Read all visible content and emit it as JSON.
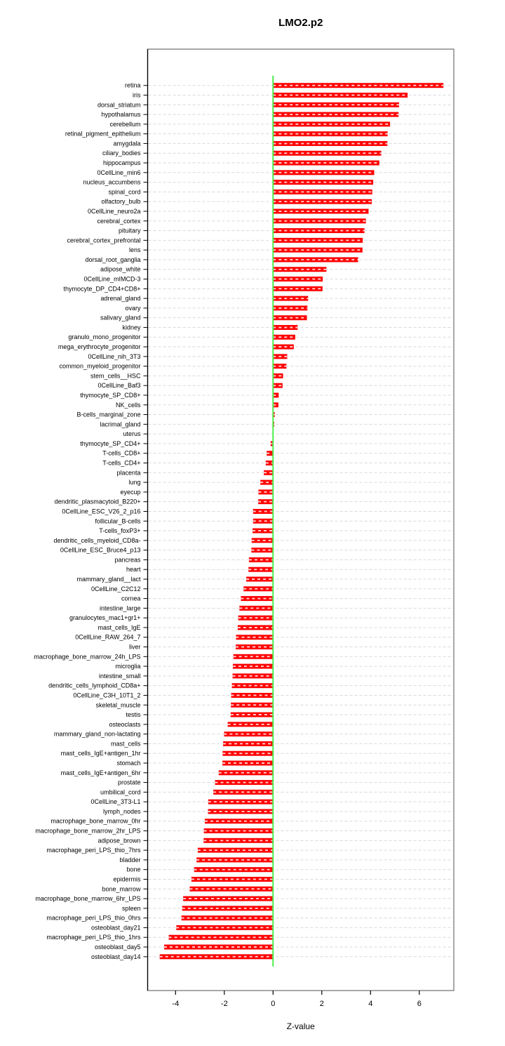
{
  "title": "LMO2.p2",
  "chart_data": {
    "type": "bar",
    "orientation": "horizontal",
    "title": "LMO2.p2",
    "xlabel": "Z-value",
    "x_ticks": [
      -4,
      -2,
      0,
      2,
      4,
      6
    ],
    "x_tick_labels": [
      "-4",
      "-2",
      "0",
      "2",
      "4",
      "6"
    ],
    "xlim": [
      -5.15,
      7.42
    ],
    "bar_color": "#FF0000",
    "zero_line_color": "#4CEE4C",
    "grid_color": "#D9D9D9",
    "box_color": "#8C8C8C",
    "grid": true,
    "legend": false,
    "categories": [
      "retina",
      "iris",
      "dorsal_striatum",
      "hypothalamus",
      "cerebellum",
      "retinal_pigment_epithelium",
      "amygdala",
      "ciliary_bodies",
      "hippocampus",
      "0CellLine_min6",
      "nucleus_accumbens",
      "spinal_cord",
      "olfactory_bulb",
      "0CellLine_neuro2a",
      "cerebral_cortex",
      "pituitary",
      "cerebral_cortex_prefrontal",
      "lens",
      "dorsal_root_ganglia",
      "adipose_white",
      "0CellLine_mIMCD-3",
      "thymocyte_DP_CD4+CD8+",
      "adrenal_gland",
      "ovary",
      "salivary_gland",
      "kidney",
      "granulo_mono_progenitor",
      "mega_erythrocyte_progenitor",
      "0CellLine_nih_3T3",
      "common_myeloid_progenitor",
      "stem_cells__HSC",
      "0CellLine_Baf3",
      "thymocyte_SP_CD8+",
      "NK_cells",
      "B-cells_marginal_zone",
      "lacrimal_gland",
      "uterus",
      "thymocyte_SP_CD4+",
      "T-cells_CD8+",
      "T-cells_CD4+",
      "placenta",
      "lung",
      "eyecup",
      "dendritic_plasmacytoid_B220+",
      "0CellLine_ESC_V26_2_p16",
      "follicular_B-cells",
      "T-cells_foxP3+",
      "dendritic_cells_myeloid_CD8a-",
      "0CellLine_ESC_Bruce4_p13",
      "pancreas",
      "heart",
      "mammary_gland__lact",
      "0CellLine_C2C12",
      "cornea",
      "intestine_large",
      "granulocytes_mac1+gr1+",
      "mast_cells_IgE",
      "0CellLine_RAW_264_7",
      "liver",
      "macrophage_bone_marrow_24h_LPS",
      "microglia",
      "intestine_small",
      "dendritic_cells_lymphoid_CD8a+",
      "0CellLine_C3H_10T1_2",
      "skeletal_muscle",
      "testis",
      "osteoclasts",
      "mammary_gland_non-lactating",
      "mast_cells",
      "mast_cells_IgE+antigen_1hr",
      "stomach",
      "mast_cells_IgE+antigen_6hr",
      "prostate",
      "umbilical_cord",
      "0CellLine_3T3-L1",
      "lymph_nodes",
      "macrophage_bone_marrow_0hr",
      "macrophage_bone_marrow_2hr_LPS",
      "adipose_brown",
      "macrophage_peri_LPS_thio_7hrs",
      "bladder",
      "bone",
      "epidermis",
      "bone_marrow",
      "macrophage_bone_marrow_6hr_LPS",
      "spleen",
      "macrophage_peri_LPS_thio_0hrs",
      "osteoblast_day21",
      "macrophage_peri_LPS_thio_1hrs",
      "osteoblast_day5",
      "osteoblast_day14"
    ],
    "values": [
      6.99,
      5.52,
      5.17,
      5.15,
      4.8,
      4.7,
      4.69,
      4.44,
      4.36,
      4.15,
      4.11,
      4.07,
      4.05,
      3.92,
      3.81,
      3.75,
      3.68,
      3.67,
      3.49,
      2.19,
      2.04,
      2.03,
      1.44,
      1.41,
      1.39,
      1.01,
      0.91,
      0.85,
      0.58,
      0.55,
      0.41,
      0.39,
      0.23,
      0.22,
      0.07,
      0.05,
      -0.02,
      -0.1,
      -0.26,
      -0.3,
      -0.38,
      -0.52,
      -0.6,
      -0.61,
      -0.82,
      -0.82,
      -0.84,
      -0.88,
      -0.89,
      -0.99,
      -1.01,
      -1.1,
      -1.21,
      -1.32,
      -1.38,
      -1.43,
      -1.45,
      -1.52,
      -1.53,
      -1.63,
      -1.65,
      -1.66,
      -1.69,
      -1.72,
      -1.73,
      -1.74,
      -1.86,
      -2.01,
      -2.05,
      -2.07,
      -2.08,
      -2.23,
      -2.38,
      -2.45,
      -2.66,
      -2.67,
      -2.8,
      -2.84,
      -2.85,
      -3.09,
      -3.14,
      -3.24,
      -3.35,
      -3.42,
      -3.69,
      -3.73,
      -3.76,
      -3.97,
      -4.28,
      -4.47,
      -4.65
    ]
  }
}
